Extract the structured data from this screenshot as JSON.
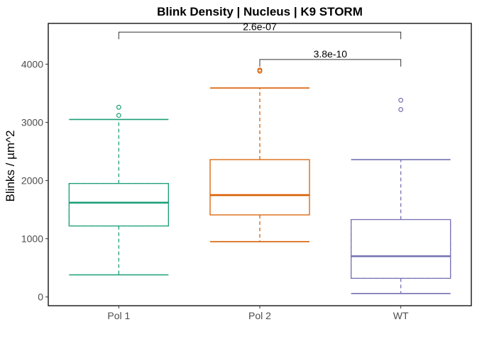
{
  "chart_data": {
    "type": "boxplot",
    "title": "Blink Density | Nucleus | K9 STORM",
    "xlabel": "",
    "ylabel": "Blinks / µm^2",
    "ylim": [
      -150,
      4700
    ],
    "yticks": [
      0,
      1000,
      2000,
      3000,
      4000
    ],
    "ytick_labels": [
      "0",
      "1000",
      "2000",
      "3000",
      "4000"
    ],
    "categories": [
      "Pol 1",
      "Pol 2",
      "WT"
    ],
    "grid": false,
    "legend": "none",
    "series": [
      {
        "category": "Pol 1",
        "color": "#1b9e77",
        "min": 380,
        "q1": 1220,
        "median": 1620,
        "q3": 1950,
        "max": 3050,
        "outliers": [
          3120,
          3260
        ]
      },
      {
        "category": "Pol 2",
        "color": "#d95f02",
        "min": 950,
        "q1": 1410,
        "median": 1750,
        "q3": 2360,
        "max": 3590,
        "outliers": [
          3880,
          3900
        ]
      },
      {
        "category": "WT",
        "color": "#7570b3",
        "min": 60,
        "q1": 320,
        "median": 700,
        "q3": 1330,
        "max": 2360,
        "outliers": [
          3220,
          3380
        ]
      }
    ],
    "annotations": [
      {
        "from": "Pol 1",
        "to": "WT",
        "label": "2.6e-07",
        "y": 4550
      },
      {
        "from": "Pol 2",
        "to": "WT",
        "label": "3.8e-10",
        "y": 4080
      }
    ]
  }
}
